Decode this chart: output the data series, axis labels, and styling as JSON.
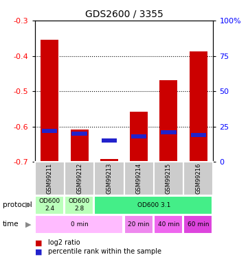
{
  "title": "GDS2600 / 3355",
  "samples": [
    "GSM99211",
    "GSM99212",
    "GSM99213",
    "GSM99214",
    "GSM99215",
    "GSM99216"
  ],
  "log2_ratio": [
    -0.355,
    -0.608,
    -0.692,
    -0.558,
    -0.468,
    -0.388
  ],
  "percentile_rank": [
    22,
    20,
    15,
    18,
    21,
    19
  ],
  "ylim_left": [
    -0.7,
    -0.3
  ],
  "ylim_right": [
    0,
    100
  ],
  "yticks_left": [
    -0.7,
    -0.6,
    -0.5,
    -0.4,
    -0.3
  ],
  "yticks_right": [
    0,
    25,
    50,
    75,
    100
  ],
  "bar_color": "#cc0000",
  "blue_color": "#2222cc",
  "proto_data": [
    {
      "start": 0,
      "end": 1,
      "label": "OD600\n2.4",
      "color": "#bbffbb"
    },
    {
      "start": 1,
      "end": 2,
      "label": "OD600\n2.8",
      "color": "#bbffbb"
    },
    {
      "start": 2,
      "end": 6,
      "label": "OD600 3.1",
      "color": "#44ee88"
    }
  ],
  "time_data": [
    {
      "start": 0,
      "end": 3,
      "label": "0 min",
      "color": "#ffbbff"
    },
    {
      "start": 3,
      "end": 4,
      "label": "20 min",
      "color": "#ee88ee"
    },
    {
      "start": 4,
      "end": 5,
      "label": "40 min",
      "color": "#ee66ee"
    },
    {
      "start": 5,
      "end": 6,
      "label": "60 min",
      "color": "#dd44dd"
    }
  ]
}
